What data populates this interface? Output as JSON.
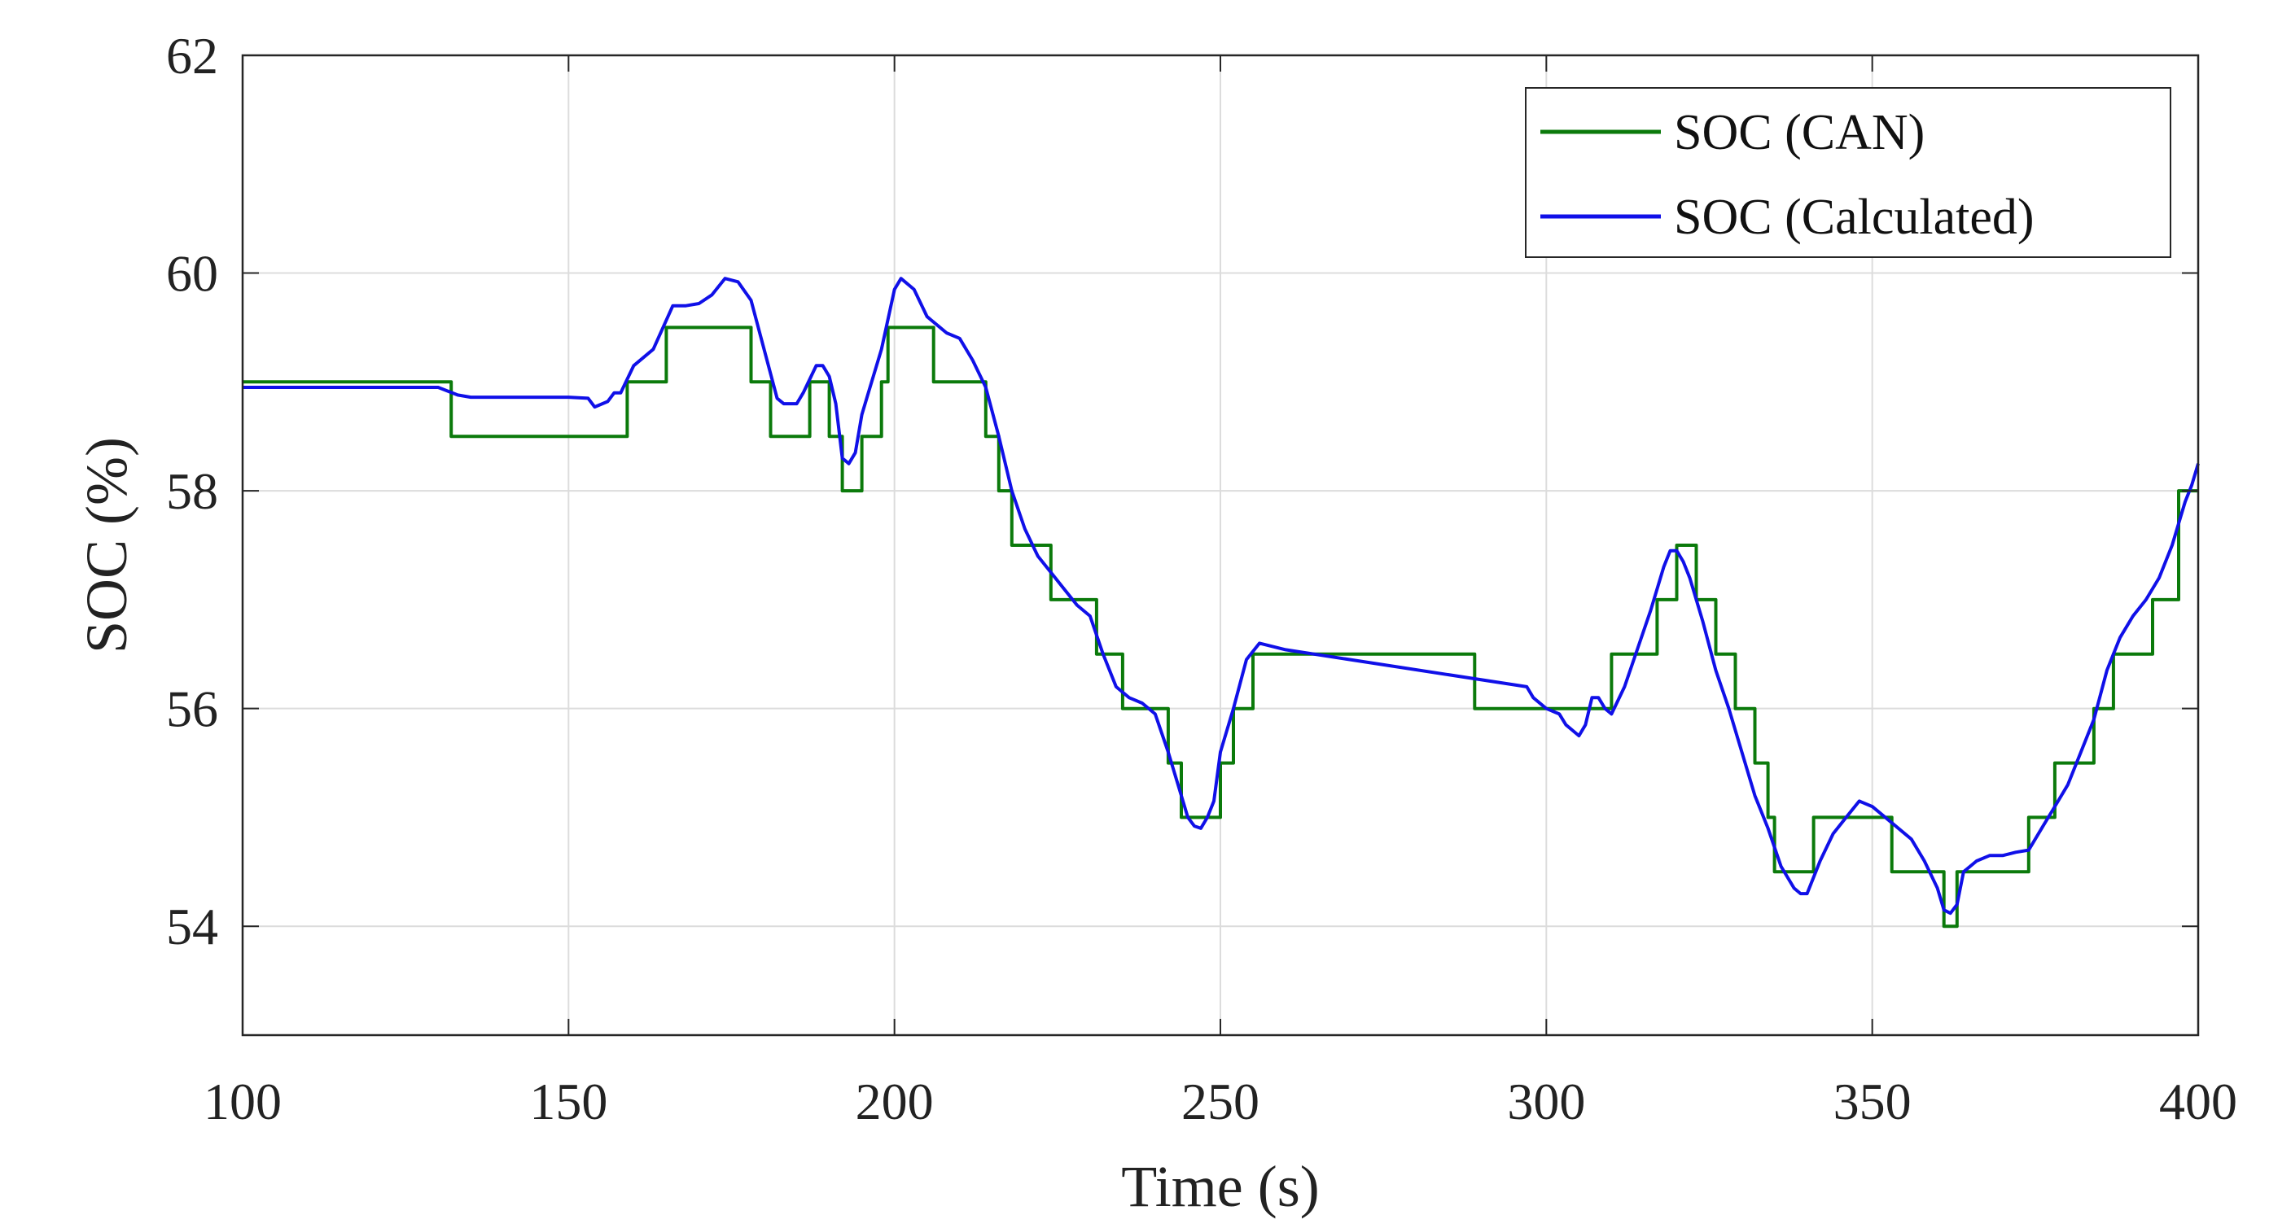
{
  "chart_data": {
    "type": "line",
    "title": "",
    "xlabel": "Time (s)",
    "ylabel": "SOC (%)",
    "xlim": [
      100,
      400
    ],
    "ylim": [
      53,
      62
    ],
    "xticks": [
      100,
      150,
      200,
      250,
      300,
      350,
      400
    ],
    "yticks": [
      54,
      56,
      58,
      60,
      62
    ],
    "grid": true,
    "legend": "top-right",
    "series": [
      {
        "name": "SOC (CAN)",
        "color": "#0b7a0b",
        "step": true,
        "x": [
          100,
          132,
          159,
          165,
          178,
          181,
          187,
          190,
          192,
          195,
          198,
          199,
          206,
          214,
          216,
          218,
          221,
          224,
          231,
          233,
          235,
          242,
          244,
          250,
          252,
          255,
          289,
          301,
          310,
          313,
          317,
          320,
          323,
          326,
          329,
          332,
          334,
          335,
          341,
          353,
          361,
          363,
          365,
          374,
          378,
          384,
          387,
          393,
          397
        ],
        "y": [
          59.0,
          58.5,
          59.0,
          59.5,
          59.0,
          58.5,
          59.0,
          58.5,
          58.0,
          58.5,
          59.0,
          59.5,
          59.0,
          58.5,
          58.0,
          57.5,
          57.5,
          57.0,
          56.5,
          56.5,
          56.0,
          55.5,
          55.0,
          55.5,
          56.0,
          56.5,
          56.0,
          56.0,
          56.5,
          56.5,
          57.0,
          57.5,
          57.0,
          56.5,
          56.0,
          55.5,
          55.0,
          54.5,
          55.0,
          54.5,
          54.0,
          54.5,
          54.5,
          55.0,
          55.5,
          56.0,
          56.5,
          57.0,
          58.0
        ]
      },
      {
        "name": "SOC (Calculated)",
        "color": "#1010e8",
        "step": false,
        "x": [
          100,
          130,
          133,
          135,
          140,
          145,
          150,
          153,
          154,
          156,
          157,
          158,
          160,
          163,
          166,
          168,
          170,
          172,
          174,
          176,
          178,
          180,
          182,
          183,
          185,
          186,
          188,
          189,
          190,
          191,
          192,
          193,
          194,
          195,
          196,
          198,
          200,
          201,
          203,
          205,
          207,
          208,
          210,
          212,
          214,
          216,
          218,
          220,
          222,
          224,
          226,
          228,
          230,
          232,
          234,
          236,
          238,
          240,
          242,
          244,
          245,
          246,
          247,
          248,
          249,
          250,
          252,
          254,
          256,
          258,
          260,
          297,
          298,
          300,
          302,
          303,
          304,
          305,
          306,
          307,
          308,
          309,
          310,
          312,
          314,
          316,
          318,
          319,
          320,
          321,
          322,
          324,
          326,
          328,
          330,
          332,
          334,
          336,
          338,
          339,
          340,
          342,
          344,
          346,
          348,
          350,
          352,
          354,
          356,
          358,
          360,
          361,
          362,
          363,
          364,
          366,
          368,
          370,
          372,
          374,
          376,
          378,
          380,
          382,
          384,
          386,
          388,
          390,
          392,
          394,
          396,
          398,
          399,
          400
        ],
        "y": [
          58.95,
          58.95,
          58.88,
          58.86,
          58.86,
          58.86,
          58.86,
          58.85,
          58.77,
          58.82,
          58.9,
          58.9,
          59.15,
          59.3,
          59.7,
          59.7,
          59.72,
          59.8,
          59.95,
          59.92,
          59.75,
          59.3,
          58.85,
          58.8,
          58.8,
          58.9,
          59.15,
          59.15,
          59.05,
          58.8,
          58.3,
          58.25,
          58.35,
          58.7,
          58.9,
          59.3,
          59.85,
          59.95,
          59.85,
          59.6,
          59.5,
          59.45,
          59.4,
          59.2,
          58.95,
          58.5,
          58.0,
          57.65,
          57.4,
          57.25,
          57.1,
          56.95,
          56.85,
          56.5,
          56.2,
          56.1,
          56.05,
          55.95,
          55.6,
          55.2,
          55.0,
          54.92,
          54.9,
          55.0,
          55.15,
          55.6,
          56.0,
          56.45,
          56.6,
          56.57,
          56.54,
          56.2,
          56.1,
          56.0,
          55.95,
          55.85,
          55.8,
          55.75,
          55.85,
          56.1,
          56.1,
          56.0,
          55.95,
          56.2,
          56.55,
          56.9,
          57.3,
          57.45,
          57.45,
          57.35,
          57.2,
          56.8,
          56.35,
          56.0,
          55.6,
          55.2,
          54.9,
          54.55,
          54.35,
          54.3,
          54.3,
          54.6,
          54.85,
          55.0,
          55.15,
          55.1,
          55.0,
          54.9,
          54.8,
          54.6,
          54.35,
          54.15,
          54.12,
          54.2,
          54.5,
          54.6,
          54.65,
          54.65,
          54.68,
          54.7,
          54.9,
          55.1,
          55.3,
          55.6,
          55.9,
          56.35,
          56.65,
          56.85,
          57.0,
          57.2,
          57.5,
          57.9,
          58.05,
          58.25
        ]
      }
    ]
  }
}
